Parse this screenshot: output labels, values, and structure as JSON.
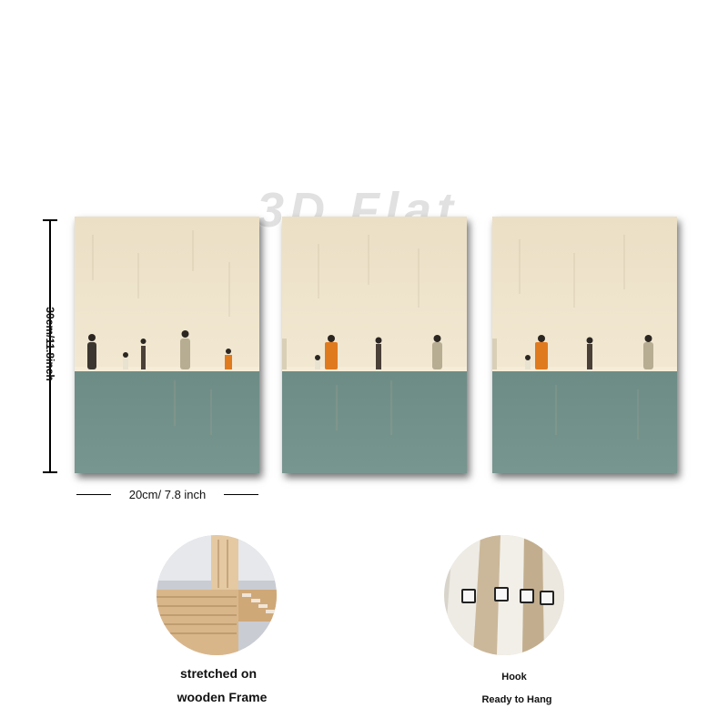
{
  "watermark": "3D Flat",
  "dimensions": {
    "height_label": "30cm/11.8inch",
    "width_label": "20cm/ 7.8 inch"
  },
  "features": [
    {
      "caption_line1": "stretched on",
      "caption_line2": "wooden Frame",
      "icon": "wooden-frame-photo"
    },
    {
      "caption_line1": "Hook",
      "caption_line2": "Ready to Hang",
      "icon": "hook-photo"
    }
  ],
  "colors": {
    "cream": "#ece0c6",
    "sage": "#6f8f88",
    "orange": "#e07a1f",
    "figure": "#3c3630"
  }
}
